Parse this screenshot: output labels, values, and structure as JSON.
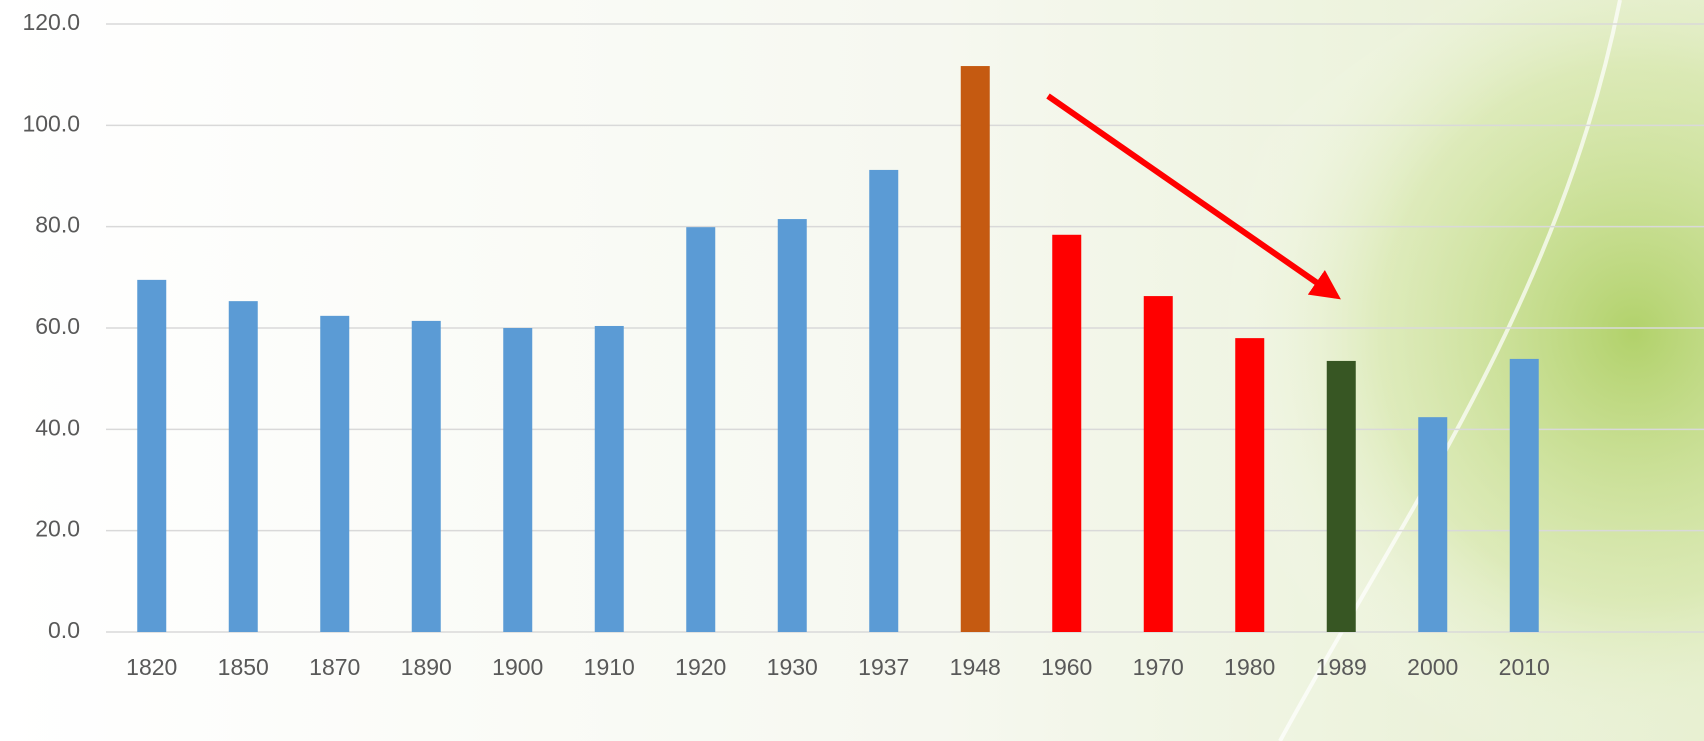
{
  "chart_data": {
    "type": "bar",
    "categories": [
      "1820",
      "1850",
      "1870",
      "1890",
      "1900",
      "1910",
      "1920",
      "1930",
      "1937",
      "1948",
      "1960",
      "1970",
      "1980",
      "1989",
      "2000",
      "2010"
    ],
    "values": [
      69.5,
      65.3,
      62.4,
      61.4,
      60.0,
      60.4,
      79.9,
      81.5,
      91.2,
      111.7,
      78.4,
      66.3,
      58.0,
      53.5,
      42.4,
      53.9
    ],
    "colors": [
      "#5b9bd5",
      "#5b9bd5",
      "#5b9bd5",
      "#5b9bd5",
      "#5b9bd5",
      "#5b9bd5",
      "#5b9bd5",
      "#5b9bd5",
      "#5b9bd5",
      "#c55a11",
      "#ff0000",
      "#ff0000",
      "#ff0000",
      "#375623",
      "#5b9bd5",
      "#5b9bd5"
    ],
    "ylim": [
      0,
      120
    ],
    "yticks": [
      {
        "value": 0,
        "label": "0.0"
      },
      {
        "value": 20,
        "label": "20.0"
      },
      {
        "value": 40,
        "label": "40.0"
      },
      {
        "value": 60,
        "label": "60.0"
      },
      {
        "value": 80,
        "label": "80.0"
      },
      {
        "value": 100,
        "label": "100.0"
      },
      {
        "value": 120,
        "label": "120.0"
      }
    ],
    "grid": true
  }
}
